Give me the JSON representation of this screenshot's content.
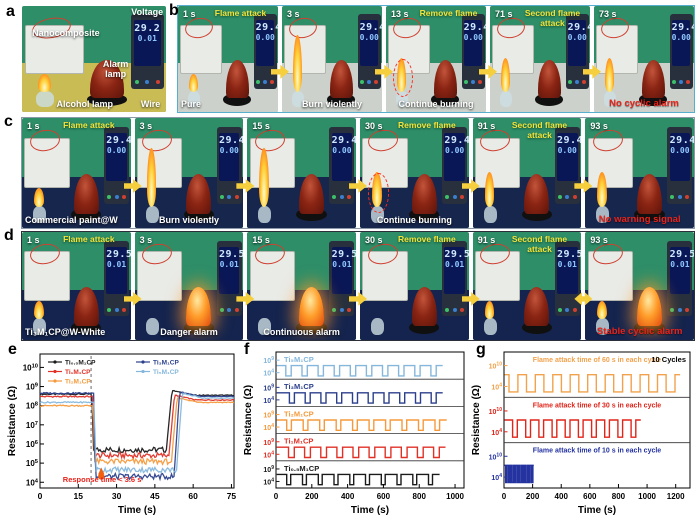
{
  "figure_labels": {
    "a": "a",
    "b": "b",
    "c": "c",
    "d": "d",
    "e": "e",
    "f": "f",
    "g": "g"
  },
  "colors": {
    "wall": "#2e8e68",
    "bench_a": "#c9bc55",
    "bench_light": "#ccd2cb",
    "bench_dark": "#16264d",
    "tag_yellow": "#f5e23a",
    "warn_red": "#e8231a",
    "arrow_yellow": "#f6cf3e",
    "series_black": "#1a1a1a",
    "series_red": "#e03127",
    "series_orange": "#f59a3c",
    "series_navy": "#2b3f8c",
    "series_lightblue": "#85b7dc",
    "series_blue": "#2433a0"
  },
  "panel_a": {
    "labels": {
      "nanocomposite": "Nanocomposite",
      "voltage": "Voltage",
      "alarm_lamp": "Alarm lamp",
      "alcohol_lamp": "Alcohol lamp",
      "wire": "Wire"
    },
    "meter": {
      "v": "29.2",
      "i": "0.01"
    }
  },
  "panel_b": {
    "bench": "#ccd2cb",
    "meter": {
      "v": "29.4",
      "i": "0.00"
    },
    "frames": [
      {
        "time": "1 s",
        "tag": "Flame attack",
        "caption": "Pure",
        "caption_style": "sample",
        "flame": "small",
        "alarm": "off"
      },
      {
        "time": "3 s",
        "tag": "",
        "caption": "Burn violently",
        "caption_style": "white",
        "flame": "big",
        "alarm": "off"
      },
      {
        "time": "13 s",
        "tag": "Remove flame",
        "caption": "Continue burning",
        "caption_style": "white",
        "flame": "medium",
        "alarm": "off",
        "circle": true
      },
      {
        "time": "71 s",
        "tag": "Second flame attack",
        "caption": "",
        "caption_style": "white",
        "flame": "medium",
        "alarm": "off"
      },
      {
        "time": "73 s",
        "tag": "",
        "caption": "No cyclic alarm",
        "caption_style": "red",
        "flame": "medium",
        "alarm": "off"
      }
    ]
  },
  "panel_c": {
    "bench": "#16264d",
    "meter": {
      "v": "29.4",
      "i": "0.00"
    },
    "frames": [
      {
        "time": "1 s",
        "tag": "Flame attack",
        "caption": "Commercial paint@W",
        "caption_style": "sample",
        "flame": "small",
        "alarm": "off"
      },
      {
        "time": "3 s",
        "tag": "",
        "caption": "Burn violently",
        "caption_style": "white",
        "flame": "big",
        "alarm": "off"
      },
      {
        "time": "15 s",
        "tag": "",
        "caption": "",
        "caption_style": "white",
        "flame": "big",
        "alarm": "off"
      },
      {
        "time": "30 s",
        "tag": "Remove flame",
        "caption": "Continue burning",
        "caption_style": "white",
        "flame": "medium",
        "alarm": "off",
        "circle": true
      },
      {
        "time": "91 s",
        "tag": "Second flame attack",
        "caption": "",
        "caption_style": "white",
        "flame": "medium",
        "alarm": "off"
      },
      {
        "time": "93 s",
        "tag": "",
        "caption": "No warning signal",
        "caption_style": "red",
        "flame": "medium",
        "alarm": "off"
      }
    ]
  },
  "panel_d": {
    "bench": "#14244e",
    "meter": {
      "v": "29.5",
      "i": "0.01"
    },
    "frames": [
      {
        "time": "1 s",
        "tag": "Flame attack",
        "caption": "Ti₃M₁CP@W-White",
        "caption_style": "sample",
        "flame": "small",
        "alarm": "off"
      },
      {
        "time": "3 s",
        "tag": "",
        "caption": "Danger alarm",
        "caption_style": "white",
        "flame": "none",
        "alarm": "on"
      },
      {
        "time": "15 s",
        "tag": "",
        "caption": "Continuous alarm",
        "caption_style": "white",
        "flame": "none",
        "alarm": "on"
      },
      {
        "time": "30 s",
        "tag": "Remove flame",
        "caption": "",
        "caption_style": "white",
        "flame": "none",
        "alarm": "off"
      },
      {
        "time": "91 s",
        "tag": "Second flame attack",
        "caption": "",
        "caption_style": "white",
        "flame": "small",
        "alarm": "off",
        "arrow": "double"
      },
      {
        "time": "93 s",
        "tag": "",
        "caption": "Stable cyclic alarm",
        "caption_style": "red",
        "flame": "small",
        "alarm": "on"
      }
    ]
  },
  "chart_data": [
    {
      "id": "e",
      "type": "line",
      "title": "",
      "xlabel": "Time (s)",
      "ylabel": "Resistance (Ω)",
      "xlim": [
        0,
        76
      ],
      "xticks": [
        0,
        15,
        30,
        45,
        60,
        75
      ],
      "yscale": "log",
      "ytick_exponents": [
        4,
        5,
        6,
        7,
        8,
        9,
        10
      ],
      "ylim_exponents": [
        3.7,
        10.7
      ],
      "legend_position": "top-inside",
      "grid": false,
      "flame_on_t": 20,
      "flame_off_t": 50,
      "annotation": {
        "text": "Response time < 3.6 s",
        "color": "#e8231a"
      },
      "event_marker": {
        "x": 24,
        "y": 20000,
        "color": "#f2600f"
      },
      "series": [
        {
          "name": "Ti₀.₅M₁CP",
          "color": "#1a1a1a",
          "r_initial": 400000000.0,
          "r_flame": 500000.0,
          "r_final": 350000000.0,
          "drop_t": 20.3,
          "rise_t": 49.5
        },
        {
          "name": "Ti₁M₁CP",
          "color": "#e03127",
          "r_initial": 300000000.0,
          "r_flame": 250000.0,
          "r_final": 200000000.0,
          "drop_t": 20.6,
          "rise_t": 50.5
        },
        {
          "name": "Ti₂M₁CP",
          "color": "#f59a3c",
          "r_initial": 100000000.0,
          "r_flame": 120000.0,
          "r_final": 150000000.0,
          "drop_t": 20.8,
          "rise_t": 51.5
        },
        {
          "name": "Ti₃M₁CP",
          "color": "#2b3f8c",
          "r_initial": 450000000.0,
          "r_flame": 20000.0,
          "r_final": 300000000.0,
          "drop_t": 21.0,
          "rise_t": 52.5
        },
        {
          "name": "Ti₅M₁CP",
          "color": "#85b7dc",
          "r_initial": 150000000.0,
          "r_flame": 45000.0,
          "r_final": 250000000.0,
          "drop_t": 21.2,
          "rise_t": 53.5
        }
      ]
    },
    {
      "id": "f",
      "type": "line-stacked",
      "xlabel": "Time (s)",
      "ylabel": "Resistance (Ω)",
      "xlim": [
        0,
        1050
      ],
      "xticks": [
        0,
        200,
        400,
        600,
        800,
        1000
      ],
      "label_mode": "left",
      "bands": [
        {
          "name": "Ti₅M₁CP",
          "color": "#85b7dc",
          "ytick_exponents": [
            9,
            4
          ],
          "r_high": 500000000.0,
          "r_low": 30000.0,
          "cycle_start": 55,
          "cycle_period": 90,
          "flame_duration": 30,
          "cycles": 10
        },
        {
          "name": "Ti₃M₁CP",
          "color": "#2b3f8c",
          "ytick_exponents": [
            9,
            4
          ],
          "r_high": 500000000.0,
          "r_low": 30000.0,
          "cycle_start": 75,
          "cycle_period": 88,
          "flame_duration": 28,
          "cycles": 10
        },
        {
          "name": "Ti₂M₁CP",
          "color": "#f59a3c",
          "ytick_exponents": [
            9,
            4
          ],
          "r_high": 500000000.0,
          "r_low": 30000.0,
          "cycle_start": 60,
          "cycle_period": 92,
          "flame_duration": 26,
          "cycles": 10
        },
        {
          "name": "Ti₁M₁CP",
          "color": "#e03127",
          "ytick_exponents": [
            9,
            4
          ],
          "r_high": 500000000.0,
          "r_low": 30000.0,
          "cycle_start": 70,
          "cycle_period": 90,
          "flame_duration": 32,
          "cycles": 10
        },
        {
          "name": "Ti₀.₅M₁CP",
          "color": "#1a1a1a",
          "ytick_exponents": [
            9,
            4
          ],
          "r_high": 500000000.0,
          "r_low": 30000.0,
          "cycle_start": 60,
          "cycle_period": 88,
          "flame_duration": 22,
          "cycles": 10
        }
      ]
    },
    {
      "id": "g",
      "type": "line-stacked",
      "xlabel": "Time (s)",
      "ylabel": "Resistance (Ω)",
      "xlim": [
        0,
        1300
      ],
      "xticks": [
        0,
        200,
        400,
        600,
        800,
        1000,
        1200
      ],
      "label_mode": "center",
      "note": "10 Cycles",
      "bands": [
        {
          "label": "Flame attack time of 60 s in each cycle",
          "color": "#f2a24c",
          "ytick_exponents": [
            10,
            4
          ],
          "r_high": 1000000000.0,
          "r_low": 20000.0,
          "cycle_start": 35,
          "cycle_period": 122,
          "flame_duration": 62,
          "cycles": 10
        },
        {
          "label": "Flame attack time of 30 s in each cycle",
          "color": "#e0251a",
          "ytick_exponents": [
            10,
            4
          ],
          "r_high": 1000000000.0,
          "r_low": 20000.0,
          "cycle_start": 60,
          "cycle_period": 92,
          "flame_duration": 33,
          "cycles": 10
        },
        {
          "label": "Flame attack time of 10 s in each cycle",
          "color": "#2433a0",
          "ytick_exponents": [
            10,
            4
          ],
          "r_high": 1000000000.0,
          "r_low": 20000.0,
          "cycle_start": 12,
          "cycle_period": 20,
          "flame_duration": 10,
          "cycles": 10
        }
      ]
    }
  ]
}
